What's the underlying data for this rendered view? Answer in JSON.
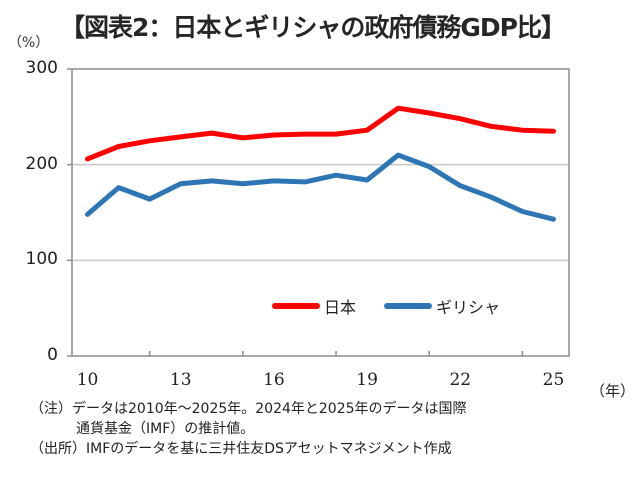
{
  "chart_data": {
    "type": "line",
    "title": "【図表2：日本とギリシャの政府債務GDP比】",
    "ylabel": "（%）",
    "xlabel": "（年）",
    "ylim": [
      0,
      300
    ],
    "yticks": [
      "0",
      "100",
      "200",
      "300"
    ],
    "x": [
      2010,
      2011,
      2012,
      2013,
      2014,
      2015,
      2016,
      2017,
      2018,
      2019,
      2020,
      2021,
      2022,
      2023,
      2024,
      2025
    ],
    "xtick_labels": [
      {
        "year": 2010,
        "label": "10"
      },
      {
        "year": 2013,
        "label": "13"
      },
      {
        "year": 2016,
        "label": "16"
      },
      {
        "year": 2019,
        "label": "19"
      },
      {
        "year": 2022,
        "label": "22"
      },
      {
        "year": 2025,
        "label": "25"
      }
    ],
    "grid": true,
    "legend_position": "center-bottom-inside",
    "series": [
      {
        "name": "日本",
        "color": "#ff0000",
        "values": [
          206,
          219,
          225,
          229,
          233,
          228,
          231,
          232,
          232,
          236,
          259,
          254,
          248,
          240,
          236,
          235
        ]
      },
      {
        "name": "ギリシャ",
        "color": "#2e75b6",
        "values": [
          148,
          176,
          164,
          180,
          183,
          180,
          183,
          182,
          189,
          184,
          210,
          198,
          178,
          166,
          151,
          143
        ]
      }
    ]
  },
  "notes": {
    "note1_line1": "（注）データは2010年～2025年。2024年と2025年のデータは国際",
    "note1_line2": "通貨基金（IMF）の推計値。",
    "source": "（出所）IMFのデータを基に三井住友DSアセットマネジメント作成"
  }
}
